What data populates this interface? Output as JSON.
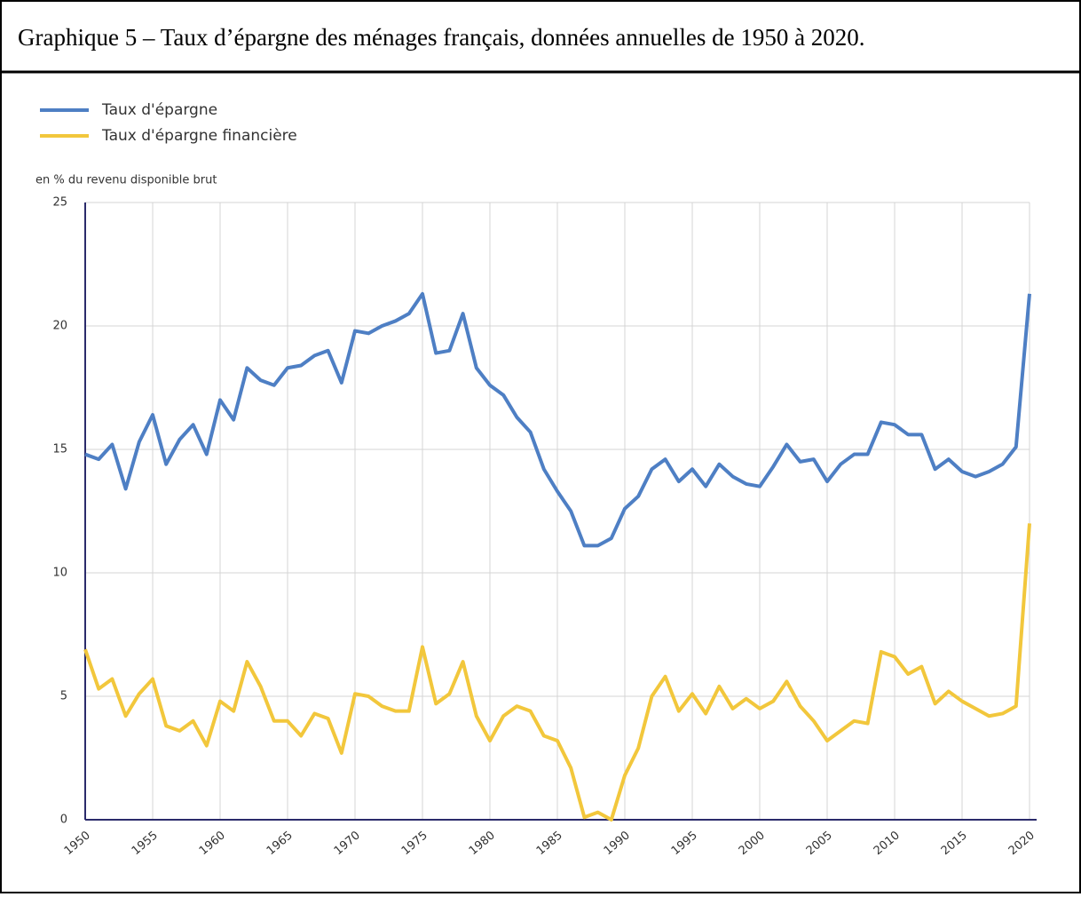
{
  "chart_data": {
    "type": "line",
    "title": "Graphique 5 – Taux d’épargne des ménages français, données annuelles de 1950 à 2020.",
    "y_label": "en % du revenu disponible brut",
    "x": [
      1950,
      1951,
      1952,
      1953,
      1954,
      1955,
      1956,
      1957,
      1958,
      1959,
      1960,
      1961,
      1962,
      1963,
      1964,
      1965,
      1966,
      1967,
      1968,
      1969,
      1970,
      1971,
      1972,
      1973,
      1974,
      1975,
      1976,
      1977,
      1978,
      1979,
      1980,
      1981,
      1982,
      1983,
      1984,
      1985,
      1986,
      1987,
      1988,
      1989,
      1990,
      1991,
      1992,
      1993,
      1994,
      1995,
      1996,
      1997,
      1998,
      1999,
      2000,
      2001,
      2002,
      2003,
      2004,
      2005,
      2006,
      2007,
      2008,
      2009,
      2010,
      2011,
      2012,
      2013,
      2014,
      2015,
      2016,
      2017,
      2018,
      2019,
      2020
    ],
    "series": [
      {
        "name": "Taux d'épargne",
        "color": "#4e7fc4",
        "values": [
          14.8,
          14.6,
          15.2,
          13.4,
          15.3,
          16.4,
          14.4,
          15.4,
          16.0,
          14.8,
          17.0,
          16.2,
          18.3,
          17.8,
          17.6,
          18.3,
          18.4,
          18.8,
          19.0,
          17.7,
          19.8,
          19.7,
          20.0,
          20.2,
          20.5,
          21.3,
          18.9,
          19.0,
          20.5,
          18.3,
          17.6,
          17.2,
          16.3,
          15.7,
          14.2,
          13.3,
          12.5,
          11.1,
          11.1,
          11.4,
          12.6,
          13.1,
          14.2,
          14.6,
          13.7,
          14.2,
          13.5,
          14.4,
          13.9,
          13.6,
          13.5,
          14.3,
          15.2,
          14.5,
          14.6,
          13.7,
          14.4,
          14.8,
          14.8,
          16.1,
          16.0,
          15.6,
          15.6,
          14.2,
          14.6,
          14.1,
          13.9,
          14.1,
          14.4,
          15.1,
          21.3
        ]
      },
      {
        "name": "Taux d'épargne financière",
        "color": "#f2c73c",
        "values": [
          6.9,
          5.3,
          5.7,
          4.2,
          5.1,
          5.7,
          3.8,
          3.6,
          4.0,
          3.0,
          4.8,
          4.4,
          6.4,
          5.4,
          4.0,
          4.0,
          3.4,
          4.3,
          4.1,
          2.7,
          5.1,
          5.0,
          4.6,
          4.4,
          4.4,
          7.0,
          4.7,
          5.1,
          6.4,
          4.2,
          3.2,
          4.2,
          4.6,
          4.4,
          3.4,
          3.2,
          2.1,
          0.1,
          0.3,
          0.0,
          1.8,
          2.9,
          5.0,
          5.8,
          4.4,
          5.1,
          4.3,
          5.4,
          4.5,
          4.9,
          4.5,
          4.8,
          5.6,
          4.6,
          4.0,
          3.2,
          3.6,
          4.0,
          3.9,
          6.8,
          6.6,
          5.9,
          6.2,
          4.7,
          5.2,
          4.8,
          4.5,
          4.2,
          4.3,
          4.6,
          12.0
        ]
      }
    ],
    "xlim": [
      1950,
      2020
    ],
    "xticks": [
      1950,
      1955,
      1960,
      1965,
      1970,
      1975,
      1980,
      1985,
      1990,
      1995,
      2000,
      2005,
      2010,
      2015,
      2020
    ],
    "ylim": [
      0,
      25
    ],
    "yticks": [
      0,
      5,
      10,
      15,
      20,
      25
    ],
    "grid": true,
    "legend": "top-left"
  }
}
